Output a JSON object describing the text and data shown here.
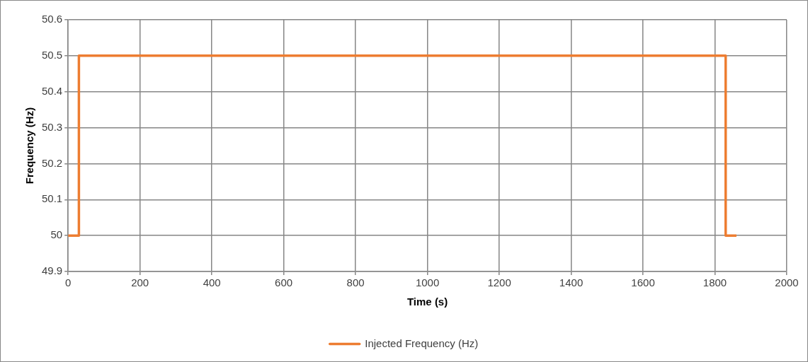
{
  "chart_data": {
    "type": "line",
    "xlabel": "Time (s)",
    "ylabel": "Frequency (Hz)",
    "x": [
      0,
      30,
      30,
      1830,
      1830,
      1860
    ],
    "series": [
      {
        "name": "Injected Frequency (Hz)",
        "color": "#ed7d31",
        "values": [
          50,
          50,
          50.5,
          50.5,
          50,
          50
        ]
      }
    ],
    "xlim": [
      0,
      2000
    ],
    "xticks": [
      0,
      200,
      400,
      600,
      800,
      1000,
      1200,
      1400,
      1600,
      1800,
      2000
    ],
    "ylim": [
      49.9,
      50.6
    ],
    "yticks": [
      49.9,
      {
        "value": 50,
        "label": "50"
      },
      50.1,
      50.2,
      50.3,
      50.4,
      50.5,
      50.6
    ],
    "grid": true,
    "legend": "bottom",
    "marker": "none",
    "line_style": "solid"
  }
}
